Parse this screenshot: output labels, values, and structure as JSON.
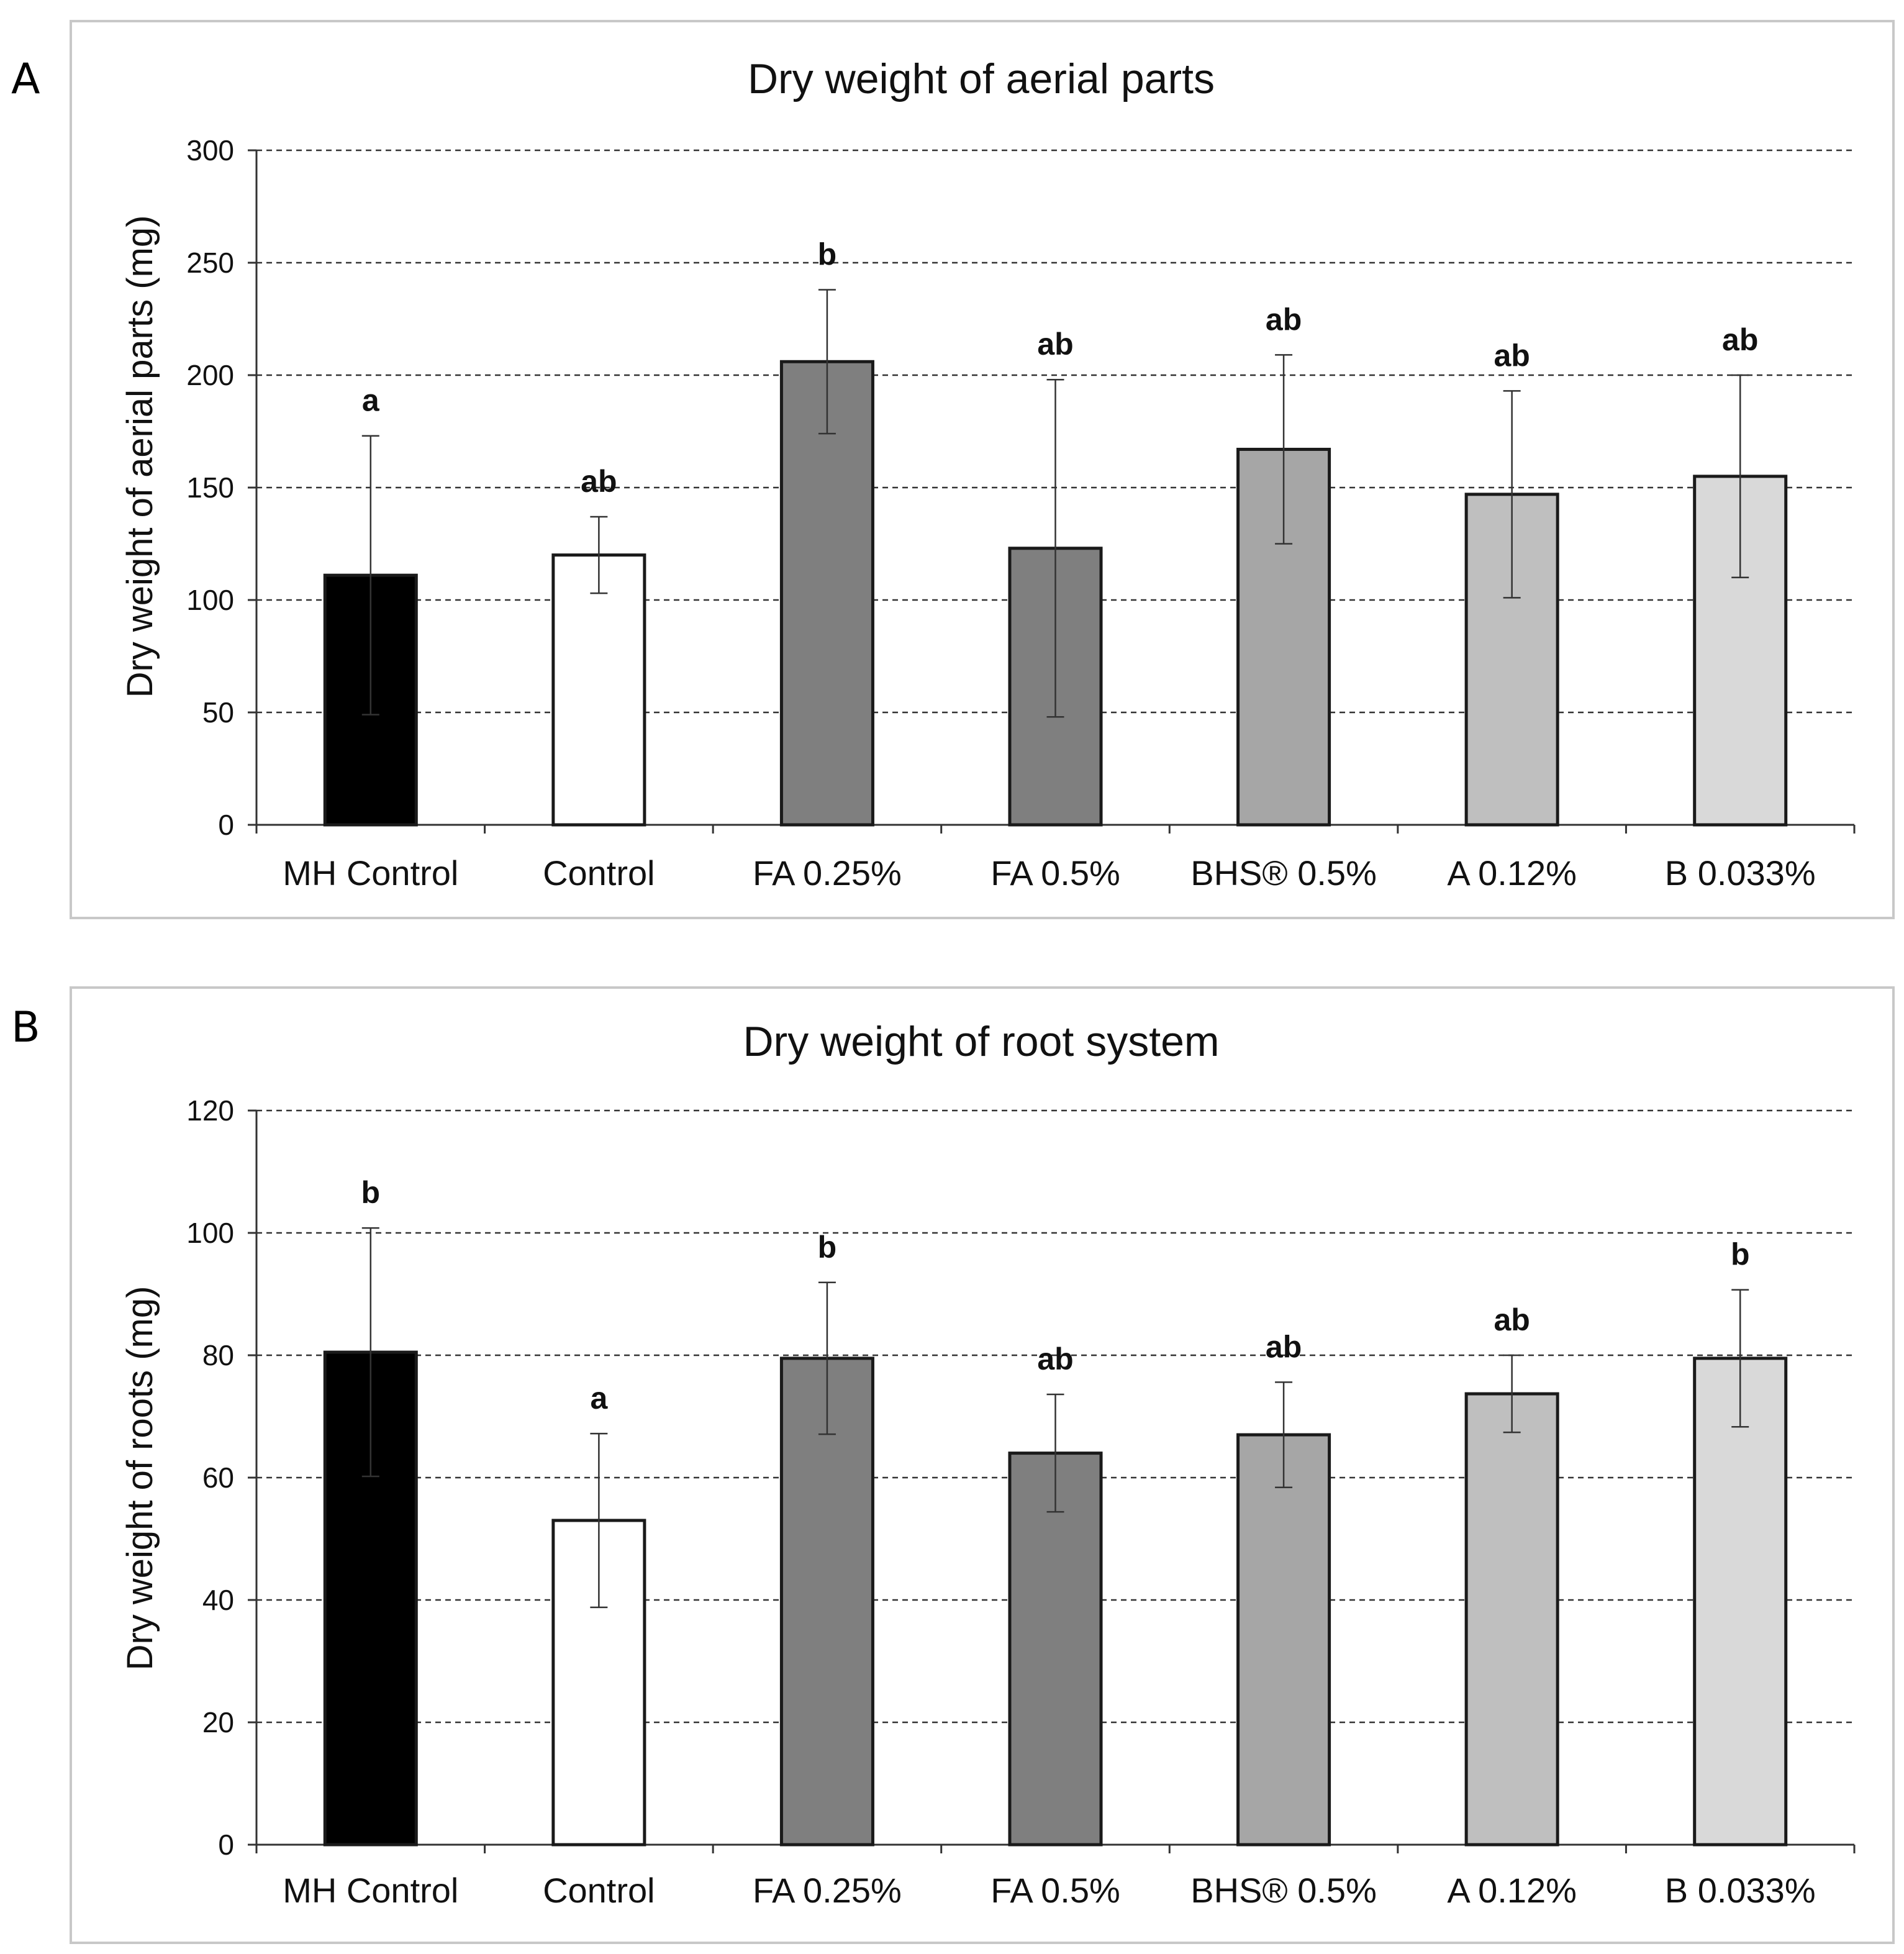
{
  "panel_labels": [
    "A",
    "B"
  ],
  "chart_data": [
    {
      "type": "bar",
      "panel": "A",
      "title": "Dry weight of aerial parts",
      "xlabel": "",
      "ylabel": "Dry weight of aerial parts (mg)",
      "ylim": [
        0,
        300
      ],
      "yticks": [
        0,
        50,
        100,
        150,
        200,
        250,
        300
      ],
      "grid": true,
      "categories": [
        "MH Control",
        "Control",
        "FA 0.25%",
        "FA 0.5%",
        "BHS® 0.5%",
        "A  0.12%",
        "B 0.033%"
      ],
      "values": [
        111,
        120,
        206,
        123,
        167,
        147,
        155
      ],
      "error": [
        62,
        17,
        32,
        75,
        42,
        46,
        45
      ],
      "significance": [
        "a",
        "ab",
        "b",
        "ab",
        "ab",
        "ab",
        "ab"
      ],
      "colors": [
        "#000000",
        "#ffffff",
        "#7f7f7f",
        "#7f7f7f",
        "#a6a6a6",
        "#bfbfbf",
        "#d9d9d9"
      ]
    },
    {
      "type": "bar",
      "panel": "B",
      "title": "Dry weight of root system",
      "xlabel": "",
      "ylabel": "Dry weight of roots (mg)",
      "ylim": [
        0,
        120
      ],
      "yticks": [
        0,
        20,
        40,
        60,
        80,
        100,
        120
      ],
      "grid": true,
      "categories": [
        "MH Control",
        "Control",
        "FA 0.25%",
        "FA 0.5%",
        "BHS® 0.5%",
        "A  0.12%",
        "B 0.033%"
      ],
      "values": [
        80.5,
        53,
        79.5,
        64,
        67,
        73.7,
        79.5
      ],
      "error": [
        20.3,
        14.2,
        12.4,
        9.6,
        8.6,
        6.3,
        11.2
      ],
      "significance": [
        "b",
        "a",
        "b",
        "ab",
        "ab",
        "ab",
        "b"
      ],
      "colors": [
        "#000000",
        "#ffffff",
        "#7f7f7f",
        "#7f7f7f",
        "#a6a6a6",
        "#bfbfbf",
        "#d9d9d9"
      ]
    }
  ]
}
